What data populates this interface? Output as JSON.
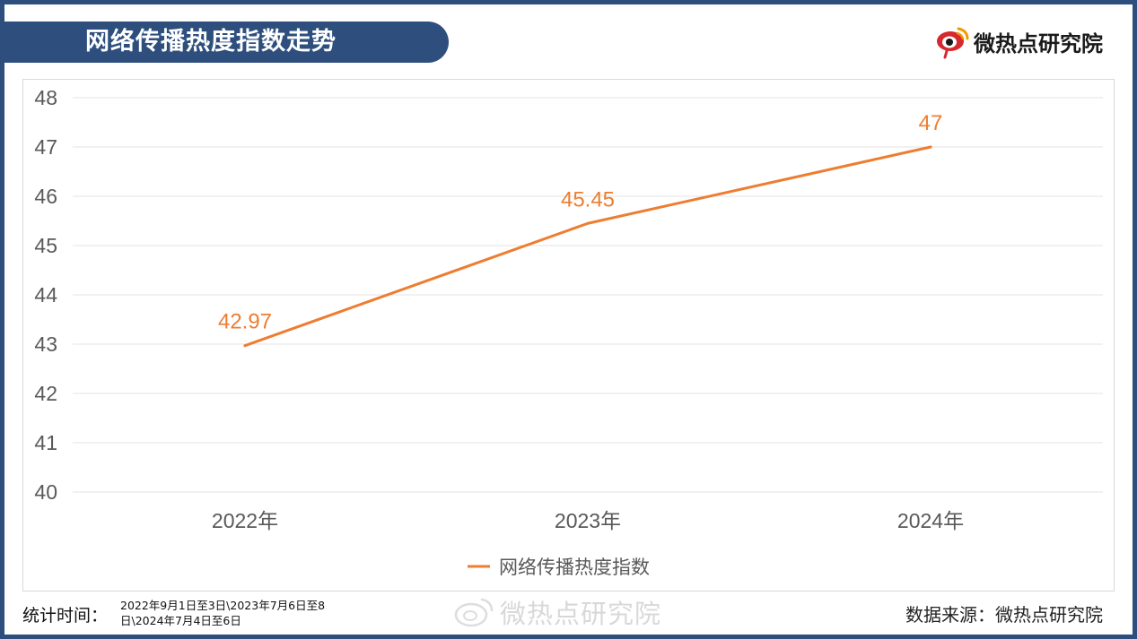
{
  "header": {
    "title": "网络传播热度指数走势",
    "brand": "微热点研究院"
  },
  "chart_data": {
    "type": "line",
    "title": "网络传播热度指数走势",
    "categories": [
      "2022年",
      "2023年",
      "2024年"
    ],
    "series": [
      {
        "name": "网络传播热度指数",
        "values": [
          42.97,
          45.45,
          47
        ],
        "labels": [
          "42.97",
          "45.45",
          "47"
        ]
      }
    ],
    "ylim": [
      40,
      48
    ],
    "yticks": [
      40,
      41,
      42,
      43,
      44,
      45,
      46,
      47,
      48
    ],
    "grid": true,
    "legend_position": "bottom",
    "colors": {
      "line": "#ed7d31",
      "label": "#ed7d31",
      "grid": "#e3e3e3",
      "axis_text": "#595959"
    }
  },
  "footer": {
    "period_label": "统计时间：",
    "period_value": "2022年9月1日至3日\\2023年7月6日至8日\\2024年7月4日至6日",
    "source": "数据来源：微热点研究院",
    "watermark": "微热点研究院"
  },
  "colors": {
    "banner": "#2e4f7d",
    "brand_red": "#d7282f"
  }
}
